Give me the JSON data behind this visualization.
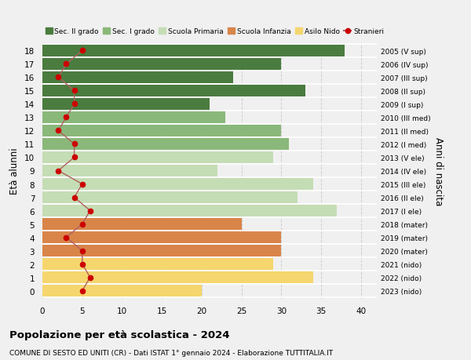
{
  "ages": [
    18,
    17,
    16,
    15,
    14,
    13,
    12,
    11,
    10,
    9,
    8,
    7,
    6,
    5,
    4,
    3,
    2,
    1,
    0
  ],
  "bar_values": [
    38,
    30,
    24,
    33,
    21,
    23,
    30,
    31,
    29,
    22,
    34,
    32,
    37,
    25,
    30,
    30,
    29,
    34,
    20
  ],
  "bar_colors": [
    "#4a7c3f",
    "#4a7c3f",
    "#4a7c3f",
    "#4a7c3f",
    "#4a7c3f",
    "#8ab87a",
    "#8ab87a",
    "#8ab87a",
    "#c5ddb5",
    "#c5ddb5",
    "#c5ddb5",
    "#c5ddb5",
    "#c5ddb5",
    "#d9854a",
    "#d9854a",
    "#d9854a",
    "#f5d66e",
    "#f5d66e",
    "#f5d66e"
  ],
  "stranieri_values": [
    5,
    3,
    2,
    4,
    4,
    3,
    2,
    4,
    4,
    2,
    5,
    4,
    6,
    5,
    3,
    5,
    5,
    6,
    5
  ],
  "right_labels": [
    "2005 (V sup)",
    "2006 (IV sup)",
    "2007 (III sup)",
    "2008 (II sup)",
    "2009 (I sup)",
    "2010 (III med)",
    "2011 (II med)",
    "2012 (I med)",
    "2013 (V ele)",
    "2014 (IV ele)",
    "2015 (III ele)",
    "2016 (II ele)",
    "2017 (I ele)",
    "2018 (mater)",
    "2019 (mater)",
    "2020 (mater)",
    "2021 (nido)",
    "2022 (nido)",
    "2023 (nido)"
  ],
  "legend_labels": [
    "Sec. II grado",
    "Sec. I grado",
    "Scuola Primaria",
    "Scuola Infanzia",
    "Asilo Nido",
    "Stranieri"
  ],
  "legend_colors": [
    "#4a7c3f",
    "#8ab87a",
    "#c5ddb5",
    "#d9854a",
    "#f5d66e",
    "#cc0000"
  ],
  "ylabel_left": "Età alunni",
  "ylabel_right": "Anni di nascita",
  "title": "Popolazione per età scolastica - 2024",
  "subtitle": "COMUNE DI SESTO ED UNITI (CR) - Dati ISTAT 1° gennaio 2024 - Elaborazione TUTTITALIA.IT",
  "xlim": [
    0,
    42
  ],
  "bar_height": 0.85,
  "background_color": "#f0f0f0",
  "stranieri_color": "#cc0000",
  "stranieri_line_color": "#b06060"
}
